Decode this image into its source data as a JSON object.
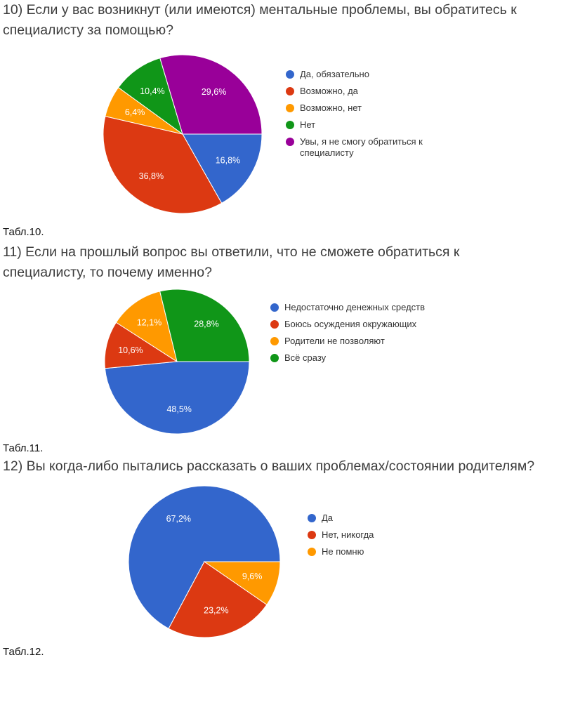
{
  "chart_data": [
    {
      "type": "pie",
      "title": "10) Если у вас возникнут (или имеются) ментальные проблемы, вы обратитесь к специалисту за помощью?",
      "caption": "Табл.10.",
      "categories": [
        "Да, обязательно",
        "Возможно, да",
        "Возможно, нет",
        "Нет",
        "Увы, я не смогу обратиться к специалисту"
      ],
      "values": [
        16.8,
        36.8,
        6.4,
        10.4,
        29.6
      ],
      "value_labels": [
        "16,8%",
        "36,8%",
        "6,4%",
        "10,4%",
        "29,6%"
      ],
      "colors": [
        "#3366cc",
        "#dc3912",
        "#ff9900",
        "#109618",
        "#990099"
      ],
      "legend": "right"
    },
    {
      "type": "pie",
      "title": "11) Если на прошлый вопрос вы ответили, что не сможете обратиться к специалисту, то почему именно?",
      "caption": "Табл.11.",
      "categories": [
        "Недостаточно денежных средств",
        "Боюсь осуждения окружающих",
        "Родители не позволяют",
        "Всё сразу"
      ],
      "values": [
        48.5,
        10.6,
        12.1,
        28.8
      ],
      "value_labels": [
        "48,5%",
        "10,6%",
        "12,1%",
        "28,8%"
      ],
      "colors": [
        "#3366cc",
        "#dc3912",
        "#ff9900",
        "#109618"
      ],
      "legend": "right"
    },
    {
      "type": "pie",
      "title": "12) Вы когда-либо пытались рассказать о ваших проблемах/состоянии родителям?",
      "caption": "Табл.12.",
      "categories": [
        "Да",
        "Нет, никогда",
        "Не помню"
      ],
      "values": [
        67.2,
        23.2,
        9.6
      ],
      "value_labels": [
        "67,2%",
        "23,2%",
        "9,6%"
      ],
      "colors": [
        "#3366cc",
        "#dc3912",
        "#ff9900"
      ],
      "legend": "right"
    }
  ]
}
